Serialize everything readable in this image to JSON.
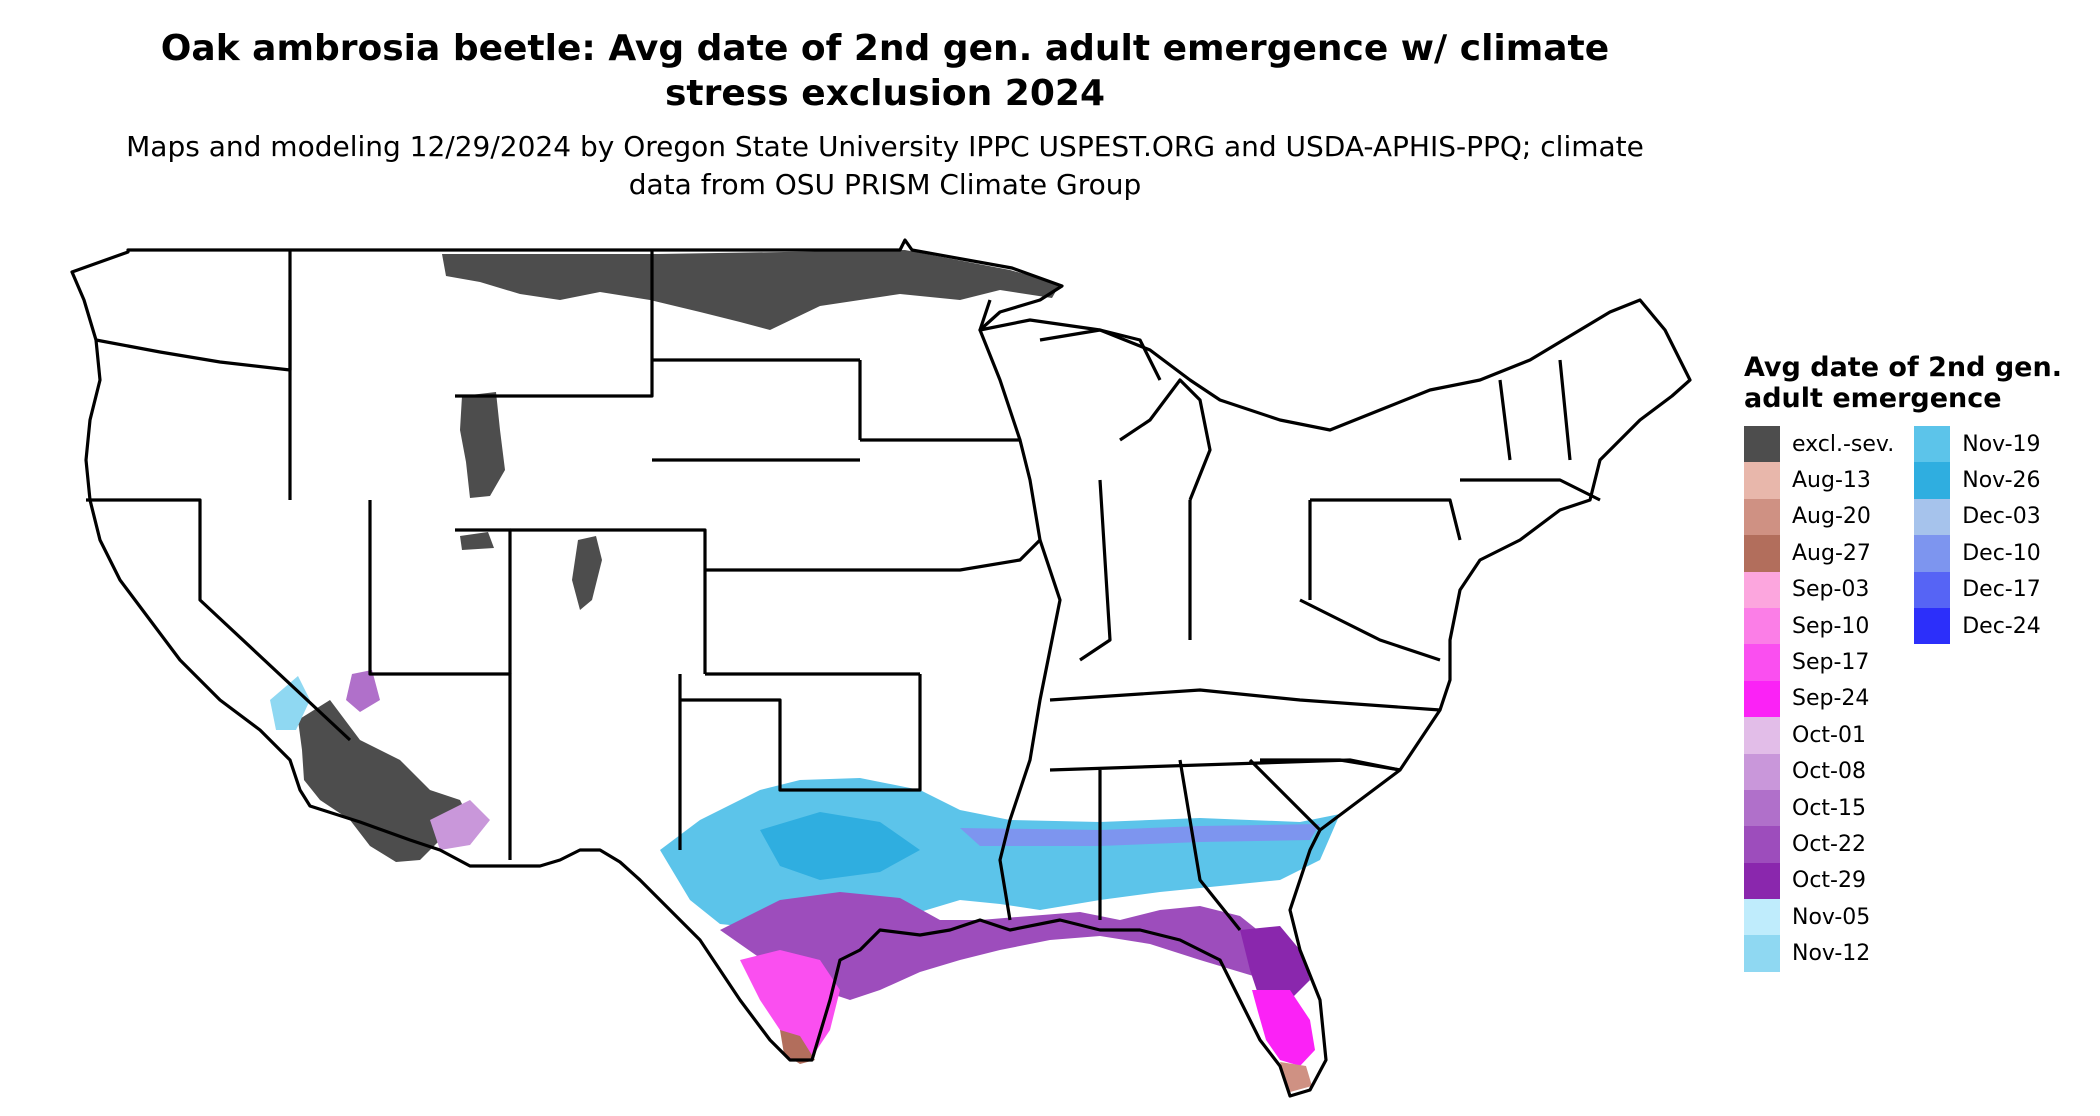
{
  "title": "Oak ambrosia beetle: Avg date of 2nd gen. adult emergence w/ climate stress exclusion 2024",
  "subtitle": "Maps and modeling 12/29/2024 by Oregon State University IPPC USPEST.ORG and USDA-APHIS-PPQ; climate data from OSU PRISM Climate Group",
  "legend": {
    "title": "Avg date of 2nd gen. adult emergence",
    "columns": [
      [
        {
          "label": "excl.-sev.",
          "color": "#4d4d4d"
        },
        {
          "label": "Aug-13",
          "color": "#e8b7ab"
        },
        {
          "label": "Aug-20",
          "color": "#cf9183"
        },
        {
          "label": "Aug-27",
          "color": "#b26e5c"
        },
        {
          "label": "Sep-03",
          "color": "#fca6de"
        },
        {
          "label": "Sep-10",
          "color": "#fb7ee7"
        },
        {
          "label": "Sep-17",
          "color": "#fa4ff0"
        },
        {
          "label": "Sep-24",
          "color": "#fb22f6"
        },
        {
          "label": "Oct-01",
          "color": "#e2bde8"
        },
        {
          "label": "Oct-08",
          "color": "#c997da"
        },
        {
          "label": "Oct-15",
          "color": "#b070ca"
        },
        {
          "label": "Oct-22",
          "color": "#9d4dbc"
        },
        {
          "label": "Oct-29",
          "color": "#8a27ad"
        },
        {
          "label": "Nov-05",
          "color": "#bfecfc"
        },
        {
          "label": "Nov-12",
          "color": "#8fd8f2"
        }
      ],
      [
        {
          "label": "Nov-19",
          "color": "#5cc4ea"
        },
        {
          "label": "Nov-26",
          "color": "#2faee0"
        },
        {
          "label": "Dec-03",
          "color": "#a6c3ec"
        },
        {
          "label": "Dec-10",
          "color": "#7d95ef"
        },
        {
          "label": "Dec-17",
          "color": "#5664f5"
        },
        {
          "label": "Dec-24",
          "color": "#2c2ffa"
        }
      ]
    ]
  }
}
